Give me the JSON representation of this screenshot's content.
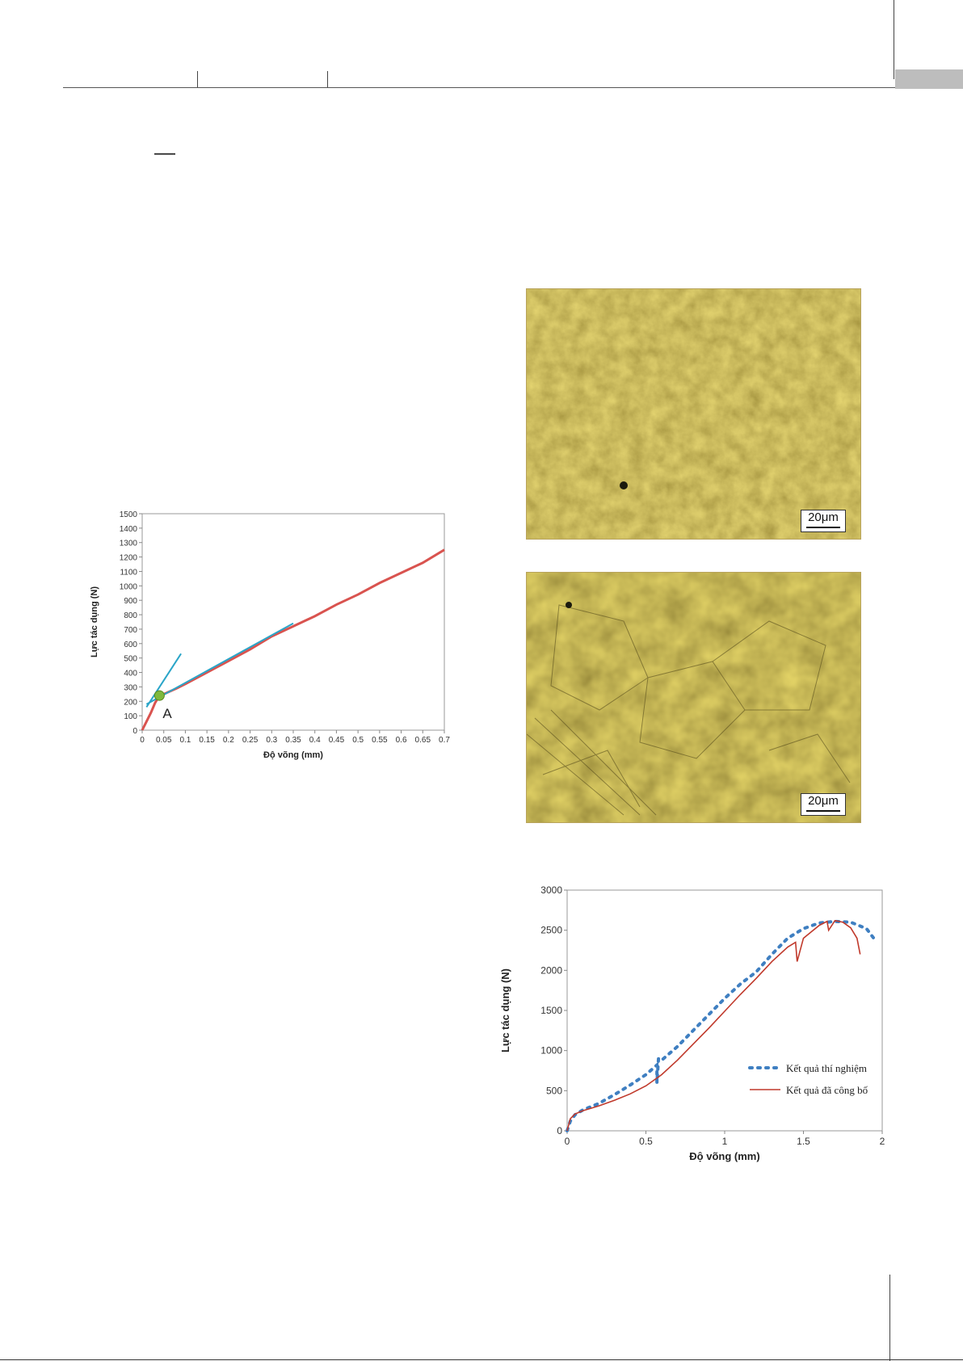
{
  "header": {
    "corner_mark": "—"
  },
  "micrographs": [
    {
      "scale_label": "20μm"
    },
    {
      "scale_label": "20μm"
    }
  ],
  "chart_data": [
    {
      "type": "line",
      "title": "",
      "xlabel": "Độ võng (mm)",
      "ylabel": "Lực tác dụng (N)",
      "xlim": [
        0,
        0.7
      ],
      "ylim": [
        0,
        1500
      ],
      "x_ticks": [
        "0",
        "0.05",
        "0.1",
        "0.15",
        "0.2",
        "0.25",
        "0.3",
        "0.35",
        "0.4",
        "0.45",
        "0.5",
        "0.55",
        "0.6",
        "0.65",
        "0.7"
      ],
      "y_ticks": [
        "0",
        "100",
        "200",
        "300",
        "400",
        "500",
        "600",
        "700",
        "800",
        "900",
        "1000",
        "1100",
        "1200",
        "1300",
        "1400",
        "1500"
      ],
      "grid": false,
      "annotations": [
        {
          "text": "A",
          "x": 0.04,
          "y": 240
        }
      ],
      "series": [
        {
          "color": "#d9534f",
          "x": [
            0,
            0.01,
            0.02,
            0.03,
            0.04,
            0.05,
            0.08,
            0.1,
            0.15,
            0.2,
            0.25,
            0.3,
            0.35,
            0.4,
            0.45,
            0.5,
            0.55,
            0.6,
            0.65,
            0.7
          ],
          "y": [
            0,
            60,
            120,
            190,
            240,
            250,
            290,
            320,
            400,
            480,
            560,
            650,
            720,
            790,
            870,
            940,
            1020,
            1090,
            1160,
            1250
          ]
        },
        {
          "color": "#2aa5c8",
          "x": [
            0.01,
            0.09
          ],
          "y": [
            160,
            530
          ]
        },
        {
          "color": "#2aa5c8",
          "x": [
            0.01,
            0.35
          ],
          "y": [
            180,
            740
          ]
        }
      ],
      "point_color": "#7fb93d"
    },
    {
      "type": "line",
      "title": "",
      "xlabel": "Độ võng (mm)",
      "ylabel": "Lực tác dụng (N)",
      "xlim": [
        0,
        2
      ],
      "ylim": [
        0,
        3000
      ],
      "x_ticks": [
        "0",
        "0.5",
        "1",
        "1.5",
        "2"
      ],
      "y_ticks": [
        "0",
        "500",
        "1000",
        "1500",
        "2000",
        "2500",
        "3000"
      ],
      "grid": false,
      "legend_position": "right",
      "series": [
        {
          "name": "Kết quả thí nghiệm",
          "style": "dotted",
          "color": "#3f7fc1",
          "x": [
            0,
            0.02,
            0.05,
            0.1,
            0.2,
            0.3,
            0.4,
            0.5,
            0.57,
            0.57,
            0.58,
            0.6,
            0.7,
            0.8,
            0.9,
            1.0,
            1.1,
            1.2,
            1.3,
            1.4,
            1.5,
            1.6,
            1.7,
            1.8,
            1.9,
            1.95
          ],
          "y": [
            0,
            120,
            200,
            260,
            340,
            450,
            570,
            700,
            820,
            600,
            900,
            880,
            1050,
            1250,
            1450,
            1650,
            1830,
            1980,
            2200,
            2400,
            2520,
            2590,
            2610,
            2600,
            2520,
            2390
          ]
        },
        {
          "name": "Kết quả đã công bố",
          "style": "solid",
          "color": "#c0392b",
          "x": [
            0,
            0.02,
            0.05,
            0.1,
            0.2,
            0.3,
            0.4,
            0.5,
            0.6,
            0.7,
            0.8,
            0.9,
            1.0,
            1.1,
            1.2,
            1.3,
            1.4,
            1.45,
            1.46,
            1.5,
            1.55,
            1.6,
            1.65,
            1.66,
            1.7,
            1.75,
            1.8,
            1.84,
            1.86
          ],
          "y": [
            0,
            150,
            210,
            250,
            310,
            380,
            460,
            560,
            700,
            880,
            1080,
            1280,
            1490,
            1700,
            1900,
            2110,
            2290,
            2350,
            2110,
            2400,
            2480,
            2560,
            2610,
            2500,
            2620,
            2600,
            2530,
            2400,
            2200
          ]
        }
      ]
    }
  ]
}
